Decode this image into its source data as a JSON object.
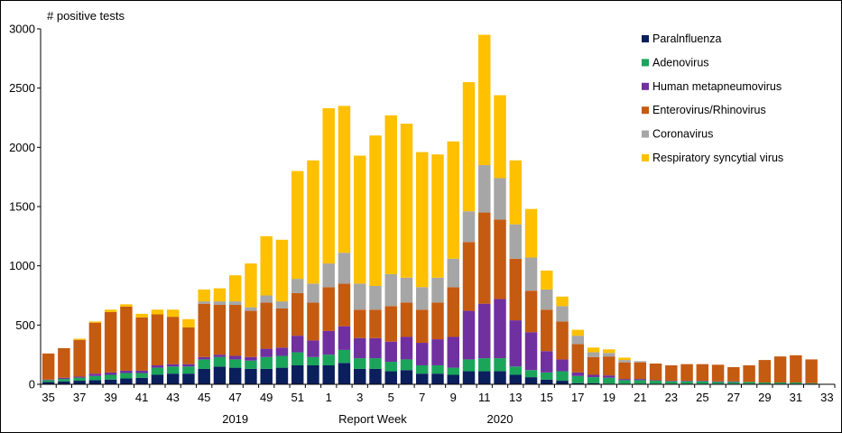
{
  "chart_data": {
    "type": "bar",
    "stacked": true,
    "title": "",
    "ylabel": "# positive tests",
    "xlabel": "Report Week",
    "year_labels": [
      {
        "text": "2019",
        "at_week": "47"
      },
      {
        "text": "2020",
        "at_week": "12"
      }
    ],
    "ylim": [
      0,
      3000
    ],
    "yticks": [
      0,
      500,
      1000,
      1500,
      2000,
      2500,
      3000
    ],
    "legend_position": "top-right",
    "categories": [
      "35",
      "36",
      "37",
      "38",
      "39",
      "40",
      "41",
      "42",
      "43",
      "44",
      "45",
      "46",
      "47",
      "48",
      "49",
      "50",
      "51",
      "52",
      "1",
      "2",
      "3",
      "4",
      "5",
      "6",
      "7",
      "8",
      "9",
      "10",
      "11",
      "12",
      "13",
      "14",
      "15",
      "16",
      "17",
      "18",
      "19",
      "20",
      "21",
      "22",
      "23",
      "24",
      "25",
      "26",
      "27",
      "28",
      "29",
      "30",
      "31",
      "32",
      "33"
    ],
    "xtick_labels": [
      "35",
      "37",
      "39",
      "41",
      "43",
      "45",
      "47",
      "49",
      "51",
      "1",
      "3",
      "5",
      "7",
      "9",
      "11",
      "13",
      "15",
      "17",
      "19",
      "21",
      "23",
      "25",
      "27",
      "29",
      "31",
      "33"
    ],
    "series": [
      {
        "name": "Paralnfluenza",
        "color": "#0a1f5c",
        "values": [
          20,
          25,
          30,
          35,
          40,
          50,
          55,
          80,
          90,
          90,
          130,
          150,
          140,
          130,
          130,
          140,
          160,
          160,
          160,
          180,
          130,
          130,
          110,
          120,
          90,
          90,
          80,
          110,
          110,
          110,
          80,
          60,
          40,
          30,
          10,
          10,
          5,
          5,
          5,
          5,
          5,
          5,
          5,
          5,
          5,
          5,
          5,
          5,
          5,
          5,
          0
        ]
      },
      {
        "name": "Adenovirus",
        "color": "#1aa55a",
        "values": [
          15,
          20,
          25,
          35,
          40,
          45,
          40,
          60,
          60,
          60,
          80,
          80,
          70,
          70,
          100,
          100,
          110,
          70,
          90,
          110,
          90,
          90,
          80,
          90,
          70,
          70,
          60,
          100,
          110,
          110,
          70,
          60,
          60,
          80,
          60,
          50,
          50,
          30,
          30,
          25,
          20,
          20,
          20,
          15,
          15,
          15,
          10,
          10,
          10,
          5,
          0
        ]
      },
      {
        "name": "Human metapneumovirus",
        "color": "#7030a0",
        "values": [
          5,
          10,
          10,
          20,
          20,
          20,
          20,
          20,
          20,
          20,
          20,
          20,
          30,
          30,
          70,
          70,
          140,
          140,
          200,
          200,
          170,
          170,
          170,
          190,
          190,
          220,
          260,
          410,
          460,
          500,
          390,
          320,
          180,
          100,
          30,
          20,
          20,
          10,
          10,
          5,
          5,
          5,
          5,
          5,
          5,
          0,
          0,
          0,
          0,
          0,
          0
        ]
      },
      {
        "name": "Enterovirus/Rhinovirus",
        "color": "#c55a11",
        "values": [
          220,
          250,
          310,
          430,
          510,
          540,
          450,
          430,
          400,
          310,
          450,
          420,
          430,
          390,
          390,
          330,
          360,
          320,
          370,
          360,
          240,
          240,
          300,
          290,
          280,
          310,
          420,
          580,
          770,
          670,
          520,
          350,
          350,
          320,
          240,
          150,
          160,
          140,
          140,
          140,
          130,
          140,
          140,
          140,
          120,
          140,
          190,
          220,
          230,
          200,
          0
        ]
      },
      {
        "name": "Coronavirus",
        "color": "#a6a6a6",
        "values": [
          0,
          0,
          0,
          0,
          0,
          0,
          0,
          0,
          0,
          0,
          20,
          30,
          30,
          30,
          60,
          60,
          120,
          160,
          200,
          260,
          220,
          200,
          270,
          210,
          190,
          210,
          240,
          260,
          400,
          350,
          290,
          280,
          170,
          130,
          70,
          40,
          30,
          20,
          10,
          0,
          0,
          0,
          0,
          0,
          0,
          0,
          0,
          0,
          0,
          0,
          0
        ]
      },
      {
        "name": "Respiratory syncytial virus",
        "color": "#ffc000",
        "values": [
          0,
          0,
          10,
          10,
          20,
          20,
          30,
          40,
          60,
          70,
          100,
          110,
          220,
          370,
          500,
          520,
          910,
          1040,
          1310,
          1240,
          1080,
          1270,
          1340,
          1300,
          1140,
          1040,
          990,
          1090,
          1100,
          700,
          540,
          410,
          160,
          80,
          50,
          40,
          30,
          20,
          0,
          0,
          0,
          0,
          0,
          0,
          0,
          0,
          0,
          0,
          0,
          0,
          0
        ]
      }
    ]
  }
}
